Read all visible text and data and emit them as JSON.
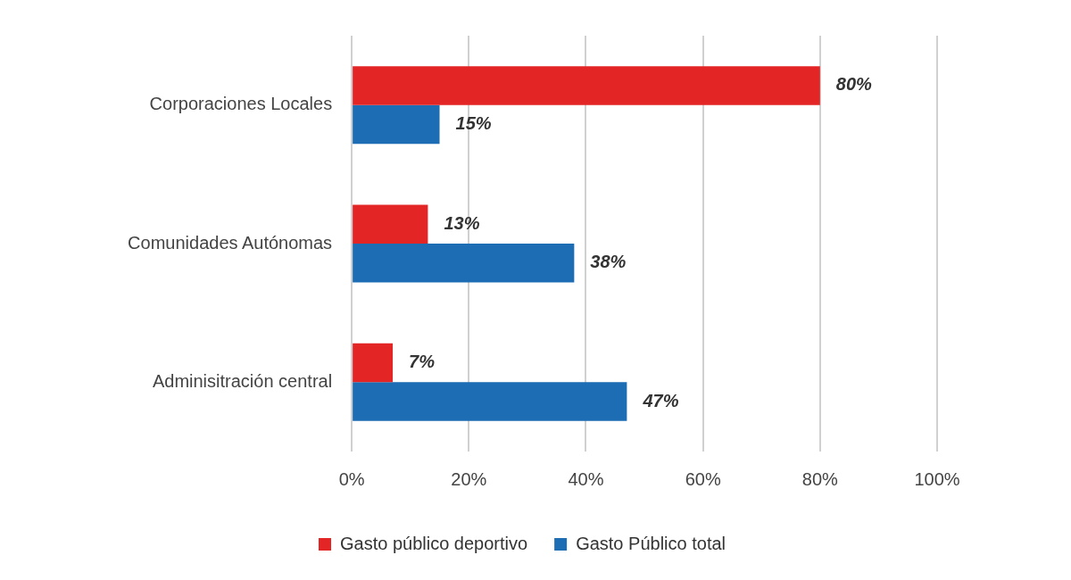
{
  "chart_data": {
    "type": "bar",
    "orientation": "horizontal",
    "categories": [
      "Corporaciones Locales",
      "Comunidades Autónomas",
      "Adminisitración central"
    ],
    "series": [
      {
        "name": "Gasto público deportivo",
        "color": "#e32526",
        "values": [
          80,
          13,
          7
        ],
        "value_labels": [
          "80%",
          "13%",
          "7%"
        ]
      },
      {
        "name": "Gasto Público total",
        "color": "#1c6db3",
        "values": [
          15,
          38,
          47
        ],
        "value_labels": [
          "15%",
          "38%",
          "47%"
        ]
      }
    ],
    "xlim": [
      0,
      100
    ],
    "xticks": [
      {
        "value": 0,
        "label": "0%"
      },
      {
        "value": 20,
        "label": "20%"
      },
      {
        "value": 40,
        "label": "40%"
      },
      {
        "value": 60,
        "label": "60%"
      },
      {
        "value": 80,
        "label": "80%"
      },
      {
        "value": 100,
        "label": "100%"
      }
    ],
    "grid": "x",
    "legend": "bottom"
  }
}
